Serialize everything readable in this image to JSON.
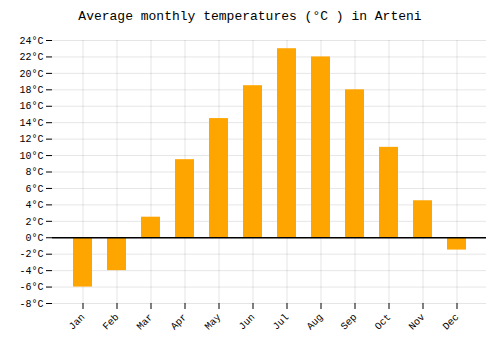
{
  "chart_data": {
    "type": "bar",
    "title": "Average monthly temperatures (°C ) in Arteni",
    "categories": [
      "Jan",
      "Feb",
      "Mar",
      "Apr",
      "May",
      "Jun",
      "Jul",
      "Aug",
      "Sep",
      "Oct",
      "Nov",
      "Dec"
    ],
    "values": [
      -6.0,
      -4.0,
      2.5,
      9.5,
      14.5,
      18.5,
      23.0,
      22.0,
      18.0,
      11.0,
      4.5,
      -1.5
    ],
    "color": "#FFA500",
    "ylim": [
      -8,
      24
    ],
    "yticks": [
      {
        "value": -8,
        "label": "-8°C"
      },
      {
        "value": -6,
        "label": "-6°C"
      },
      {
        "value": -4,
        "label": "-4°C"
      },
      {
        "value": -2,
        "label": "-2°C"
      },
      {
        "value": 0,
        "label": "0°C"
      },
      {
        "value": 2,
        "label": "2°C"
      },
      {
        "value": 4,
        "label": "4°C"
      },
      {
        "value": 6,
        "label": "6°C"
      },
      {
        "value": 8,
        "label": "8°C"
      },
      {
        "value": 10,
        "label": "10°C"
      },
      {
        "value": 12,
        "label": "12°C"
      },
      {
        "value": 14,
        "label": "14°C"
      },
      {
        "value": 16,
        "label": "16°C"
      },
      {
        "value": 18,
        "label": "18°C"
      },
      {
        "value": 20,
        "label": "20°C"
      },
      {
        "value": 22,
        "label": "22°C"
      },
      {
        "value": 24,
        "label": "24°C"
      }
    ],
    "grid": true
  }
}
